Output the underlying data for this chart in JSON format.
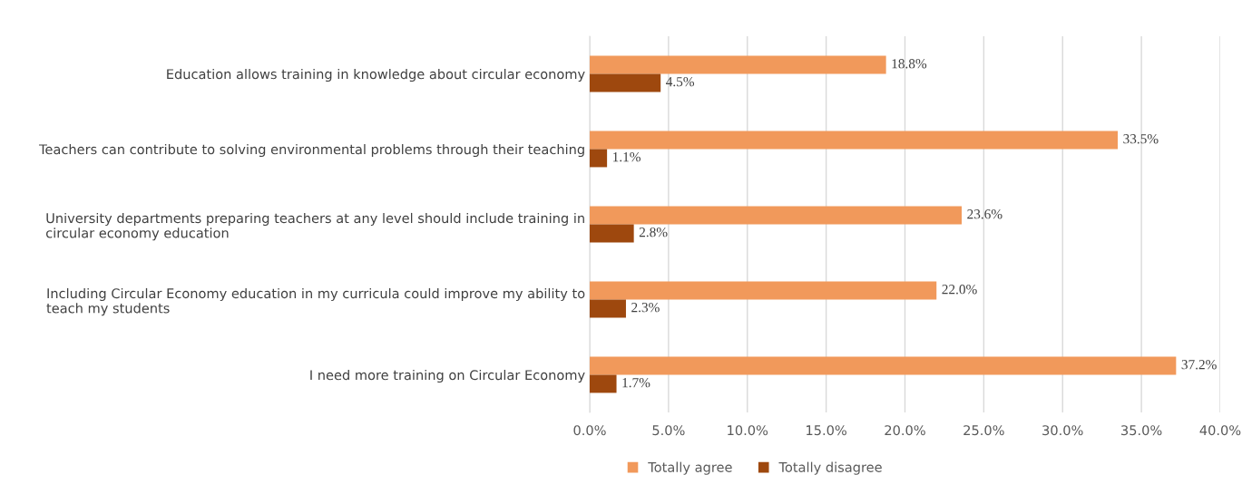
{
  "chart_data": {
    "type": "bar",
    "orientation": "horizontal",
    "categories": [
      "Education allows training in knowledge about circular economy",
      "Teachers can contribute to solving environmental problems through their teaching",
      "University departments preparing teachers at any level should include training in\ncircular economy education",
      "Including Circular Economy education in my curricula could improve my ability to\nteach my students",
      "I need more training on Circular Economy"
    ],
    "series": [
      {
        "name": "Totally agree",
        "color": "#f1995b",
        "values": [
          18.8,
          33.5,
          23.6,
          22.0,
          37.2
        ],
        "value_labels": [
          "18.8%",
          "33.5%",
          "23.6%",
          "22.0%",
          "37.2%"
        ]
      },
      {
        "name": "Totally disagree",
        "color": "#9e480e",
        "values": [
          4.5,
          1.1,
          2.8,
          2.3,
          1.7
        ],
        "value_labels": [
          "4.5%",
          "1.1%",
          "2.8%",
          "2.3%",
          "1.7%"
        ]
      }
    ],
    "xlim": [
      0,
      40
    ],
    "xticks": [
      {
        "value": 0,
        "label": "0.0%"
      },
      {
        "value": 5,
        "label": "5.0%"
      },
      {
        "value": 10,
        "label": "10.0%"
      },
      {
        "value": 15,
        "label": "15.0%"
      },
      {
        "value": 20,
        "label": "20.0%"
      },
      {
        "value": 25,
        "label": "25.0%"
      },
      {
        "value": 30,
        "label": "30.0%"
      },
      {
        "value": 35,
        "label": "35.0%"
      },
      {
        "value": 40,
        "label": "40.0%"
      }
    ],
    "grid": "x",
    "legend": "bottom"
  }
}
